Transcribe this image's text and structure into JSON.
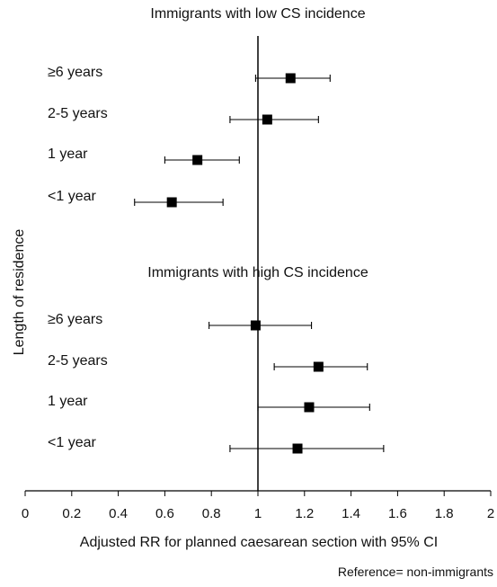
{
  "chart_data": {
    "type": "forest",
    "groups": [
      {
        "title": "Immigrants with low CS incidence",
        "rows": [
          {
            "label": "≥6 years",
            "rr": 1.14,
            "ci_low": 0.99,
            "ci_high": 1.31
          },
          {
            "label": "2-5 years",
            "rr": 1.04,
            "ci_low": 0.88,
            "ci_high": 1.26
          },
          {
            "label": "1 year",
            "rr": 0.74,
            "ci_low": 0.6,
            "ci_high": 0.92
          },
          {
            "label": "<1 year",
            "rr": 0.63,
            "ci_low": 0.47,
            "ci_high": 0.85
          }
        ]
      },
      {
        "title": "Immigrants with high CS incidence",
        "rows": [
          {
            "label": "≥6 years",
            "rr": 0.99,
            "ci_low": 0.79,
            "ci_high": 1.23
          },
          {
            "label": "2-5 years",
            "rr": 1.26,
            "ci_low": 1.07,
            "ci_high": 1.47
          },
          {
            "label": "1 year",
            "rr": 1.22,
            "ci_low": 1.0,
            "ci_high": 1.48
          },
          {
            "label": "<1 year",
            "rr": 1.17,
            "ci_low": 0.88,
            "ci_high": 1.54
          }
        ]
      }
    ],
    "xlabel": "Adjusted RR for planned caesarean section with 95% CI",
    "ylabel": "Length of residence",
    "xlim": [
      0,
      2
    ],
    "xticks": [
      "0",
      "0.2",
      "0.4",
      "0.6",
      "0.8",
      "1",
      "1.2",
      "1.4",
      "1.6",
      "1.8",
      "2"
    ],
    "reference_value": 1,
    "note": "Reference= non-immigrants",
    "colors": {
      "marker": "#000000",
      "line": "#000000",
      "axis": "#000000"
    }
  }
}
